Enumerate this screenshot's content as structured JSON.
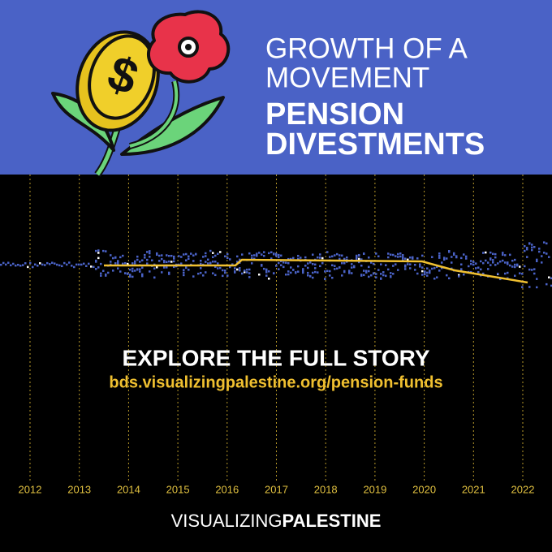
{
  "header": {
    "kicker": [
      "GROWTH OF A",
      "MOVEMENT"
    ],
    "title": [
      "PENSION",
      "DIVESTMENTS"
    ]
  },
  "timeline": {
    "years": [
      2012,
      2013,
      2014,
      2015,
      2016,
      2017,
      2018,
      2019,
      2020,
      2021,
      2022
    ]
  },
  "cta": {
    "heading": "EXPLORE THE FULL STORY",
    "url": "bds.visualizingpalestine.org/pension-funds"
  },
  "footer": {
    "brand_light": "VISUALIZING",
    "brand_bold": "PALESTINE"
  }
}
